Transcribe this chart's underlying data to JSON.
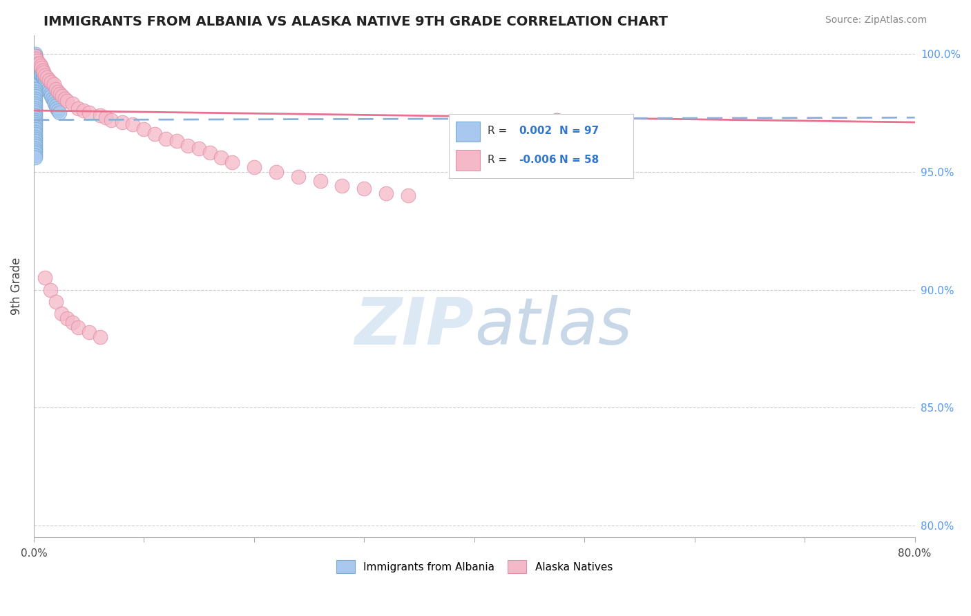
{
  "title": "IMMIGRANTS FROM ALBANIA VS ALASKA NATIVE 9TH GRADE CORRELATION CHART",
  "source": "Source: ZipAtlas.com",
  "ylabel": "9th Grade",
  "legend_label_blue": "Immigrants from Albania",
  "legend_label_pink": "Alaska Natives",
  "R_blue": 0.002,
  "N_blue": 97,
  "R_pink": -0.006,
  "N_pink": 58,
  "xlim": [
    0.0,
    0.8
  ],
  "ylim": [
    0.795,
    1.008
  ],
  "yticks": [
    0.8,
    0.85,
    0.9,
    0.95,
    1.0
  ],
  "ytick_labels": [
    "80.0%",
    "85.0%",
    "90.0%",
    "95.0%",
    "100.0%"
  ],
  "xtick_positions": [
    0.0,
    0.1,
    0.2,
    0.3,
    0.4,
    0.5,
    0.6,
    0.7,
    0.8
  ],
  "xtick_labels": [
    "0.0%",
    "",
    "",
    "",
    "",
    "",
    "",
    "",
    "80.0%"
  ],
  "grid_color": "#cccccc",
  "blue_color": "#a8c8f0",
  "blue_edge_color": "#7aaad0",
  "pink_color": "#f5b8c8",
  "pink_edge_color": "#e090a8",
  "blue_line_color": "#8ab0d8",
  "pink_line_color": "#e87090",
  "background_color": "#ffffff",
  "watermark_color": "#dde8f5",
  "blue_trend_y_at_0": 0.972,
  "blue_trend_y_at_80": 0.973,
  "pink_trend_y_at_0": 0.976,
  "pink_trend_y_at_80": 0.971,
  "blue_pts_x": [
    0.001,
    0.001,
    0.001,
    0.001,
    0.001,
    0.001,
    0.001,
    0.001,
    0.001,
    0.001,
    0.001,
    0.001,
    0.001,
    0.001,
    0.001,
    0.001,
    0.001,
    0.001,
    0.001,
    0.001,
    0.002,
    0.002,
    0.002,
    0.002,
    0.002,
    0.002,
    0.002,
    0.002,
    0.002,
    0.002,
    0.003,
    0.003,
    0.003,
    0.003,
    0.003,
    0.003,
    0.003,
    0.004,
    0.004,
    0.004,
    0.004,
    0.005,
    0.005,
    0.005,
    0.006,
    0.006,
    0.007,
    0.007,
    0.008,
    0.008,
    0.009,
    0.01,
    0.01,
    0.011,
    0.012,
    0.013,
    0.014,
    0.015,
    0.016,
    0.017,
    0.018,
    0.019,
    0.02,
    0.021,
    0.022,
    0.023,
    0.001,
    0.001,
    0.001,
    0.001,
    0.001,
    0.001,
    0.001,
    0.001,
    0.001,
    0.001,
    0.001,
    0.001,
    0.001,
    0.001,
    0.001,
    0.001,
    0.001,
    0.001,
    0.001,
    0.001,
    0.001,
    0.001,
    0.001,
    0.001,
    0.001,
    0.001,
    0.001,
    0.001,
    0.001,
    0.475,
    0.001
  ],
  "blue_pts_y": [
    1.0,
    0.999,
    0.999,
    0.998,
    0.998,
    0.998,
    0.997,
    0.997,
    0.997,
    0.996,
    0.996,
    0.995,
    0.995,
    0.994,
    0.994,
    0.993,
    0.993,
    0.992,
    0.992,
    0.991,
    0.998,
    0.997,
    0.996,
    0.995,
    0.994,
    0.993,
    0.992,
    0.991,
    0.99,
    0.989,
    0.996,
    0.995,
    0.994,
    0.993,
    0.992,
    0.991,
    0.99,
    0.995,
    0.994,
    0.993,
    0.992,
    0.994,
    0.993,
    0.992,
    0.993,
    0.992,
    0.992,
    0.991,
    0.991,
    0.99,
    0.99,
    0.989,
    0.988,
    0.987,
    0.986,
    0.985,
    0.984,
    0.983,
    0.982,
    0.981,
    0.98,
    0.979,
    0.978,
    0.977,
    0.976,
    0.975,
    0.985,
    0.984,
    0.983,
    0.982,
    0.981,
    0.98,
    0.979,
    0.978,
    0.977,
    0.976,
    0.975,
    0.974,
    0.973,
    0.972,
    0.971,
    0.97,
    0.969,
    0.968,
    0.967,
    0.966,
    0.965,
    0.964,
    0.963,
    0.962,
    0.961,
    0.96,
    0.959,
    0.958,
    0.957,
    0.972,
    0.956
  ],
  "pink_pts_x": [
    0.001,
    0.001,
    0.002,
    0.003,
    0.004,
    0.005,
    0.006,
    0.007,
    0.008,
    0.009,
    0.01,
    0.012,
    0.014,
    0.016,
    0.018,
    0.02,
    0.022,
    0.024,
    0.026,
    0.028,
    0.03,
    0.035,
    0.04,
    0.045,
    0.05,
    0.06,
    0.065,
    0.07,
    0.08,
    0.09,
    0.1,
    0.11,
    0.12,
    0.13,
    0.14,
    0.15,
    0.16,
    0.17,
    0.18,
    0.2,
    0.22,
    0.24,
    0.26,
    0.28,
    0.3,
    0.32,
    0.34,
    0.01,
    0.015,
    0.02,
    0.025,
    0.03,
    0.035,
    0.04,
    0.05,
    0.06,
    0.475,
    0.48
  ],
  "pink_pts_y": [
    0.999,
    0.997,
    0.998,
    0.997,
    0.996,
    0.996,
    0.995,
    0.994,
    0.993,
    0.992,
    0.991,
    0.99,
    0.989,
    0.988,
    0.987,
    0.985,
    0.984,
    0.983,
    0.982,
    0.981,
    0.98,
    0.979,
    0.977,
    0.976,
    0.975,
    0.974,
    0.973,
    0.972,
    0.971,
    0.97,
    0.968,
    0.966,
    0.964,
    0.963,
    0.961,
    0.96,
    0.958,
    0.956,
    0.954,
    0.952,
    0.95,
    0.948,
    0.946,
    0.944,
    0.943,
    0.941,
    0.94,
    0.905,
    0.9,
    0.895,
    0.89,
    0.888,
    0.886,
    0.884,
    0.882,
    0.88,
    0.972,
    0.971
  ]
}
